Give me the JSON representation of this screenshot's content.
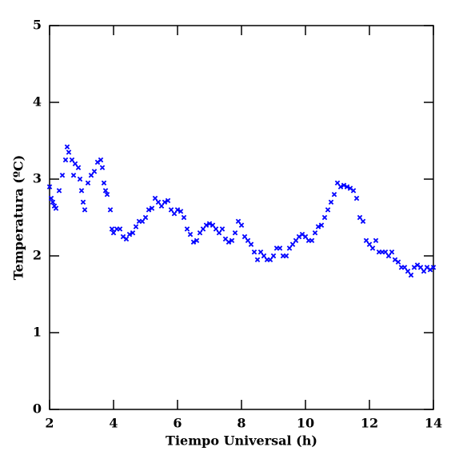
{
  "chart_data": {
    "type": "scatter",
    "xlabel": "Tiempo Universal (h)",
    "ylabel": "Temperatura (ºC)",
    "color": "#0000ff",
    "x": [
      2.0,
      2.05,
      2.1,
      2.15,
      2.2,
      2.3,
      2.4,
      2.5,
      2.55,
      2.6,
      2.7,
      2.75,
      2.8,
      2.9,
      2.95,
      3.0,
      3.05,
      3.1,
      3.2,
      3.3,
      3.4,
      3.5,
      3.6,
      3.65,
      3.7,
      3.75,
      3.8,
      3.9,
      3.95,
      4.0,
      4.1,
      4.2,
      4.3,
      4.4,
      4.5,
      4.6,
      4.7,
      4.8,
      4.9,
      5.0,
      5.1,
      5.2,
      5.3,
      5.4,
      5.5,
      5.6,
      5.7,
      5.8,
      5.9,
      6.0,
      6.1,
      6.2,
      6.3,
      6.4,
      6.5,
      6.6,
      6.7,
      6.8,
      6.9,
      7.0,
      7.1,
      7.2,
      7.3,
      7.4,
      7.5,
      7.6,
      7.7,
      7.8,
      7.9,
      8.0,
      8.1,
      8.2,
      8.3,
      8.4,
      8.5,
      8.6,
      8.7,
      8.8,
      8.9,
      9.0,
      9.1,
      9.2,
      9.3,
      9.4,
      9.5,
      9.6,
      9.7,
      9.8,
      9.9,
      10.0,
      10.1,
      10.2,
      10.3,
      10.4,
      10.5,
      10.6,
      10.7,
      10.8,
      10.9,
      11.0,
      11.1,
      11.2,
      11.3,
      11.4,
      11.5,
      11.6,
      11.7,
      11.8,
      11.9,
      12.0,
      12.1,
      12.2,
      12.3,
      12.4,
      12.5,
      12.6,
      12.7,
      12.8,
      12.9,
      13.0,
      13.1,
      13.2,
      13.3,
      13.4,
      13.5,
      13.6,
      13.7,
      13.8,
      13.9,
      14.0
    ],
    "values": [
      2.9,
      2.75,
      2.7,
      2.65,
      2.62,
      2.85,
      3.05,
      3.25,
      3.42,
      3.35,
      3.25,
      3.05,
      3.2,
      3.15,
      3.0,
      2.85,
      2.7,
      2.6,
      2.95,
      3.05,
      3.1,
      3.22,
      3.25,
      3.15,
      2.95,
      2.85,
      2.8,
      2.6,
      2.35,
      2.3,
      2.35,
      2.35,
      2.25,
      2.22,
      2.28,
      2.3,
      2.38,
      2.45,
      2.45,
      2.5,
      2.6,
      2.62,
      2.75,
      2.7,
      2.65,
      2.7,
      2.72,
      2.6,
      2.55,
      2.6,
      2.58,
      2.5,
      2.35,
      2.28,
      2.18,
      2.2,
      2.3,
      2.35,
      2.4,
      2.42,
      2.4,
      2.35,
      2.3,
      2.35,
      2.22,
      2.18,
      2.2,
      2.3,
      2.45,
      2.4,
      2.25,
      2.2,
      2.15,
      2.05,
      1.95,
      2.05,
      2.0,
      1.95,
      1.95,
      2.0,
      2.1,
      2.1,
      2.0,
      2.0,
      2.1,
      2.15,
      2.2,
      2.25,
      2.28,
      2.25,
      2.2,
      2.2,
      2.3,
      2.38,
      2.4,
      2.5,
      2.6,
      2.7,
      2.8,
      2.95,
      2.9,
      2.92,
      2.9,
      2.88,
      2.85,
      2.75,
      2.5,
      2.45,
      2.2,
      2.15,
      2.1,
      2.2,
      2.05,
      2.05,
      2.05,
      2.0,
      2.05,
      1.95,
      1.92,
      1.85,
      1.85,
      1.8,
      1.75,
      1.85,
      1.88,
      1.85,
      1.8,
      1.85,
      1.82,
      1.85
    ],
    "xlim": [
      2,
      14
    ],
    "ylim": [
      0,
      5
    ],
    "xticks": [
      2,
      4,
      6,
      8,
      10,
      12,
      14
    ],
    "yticks": [
      0,
      1,
      2,
      3,
      4,
      5
    ]
  }
}
